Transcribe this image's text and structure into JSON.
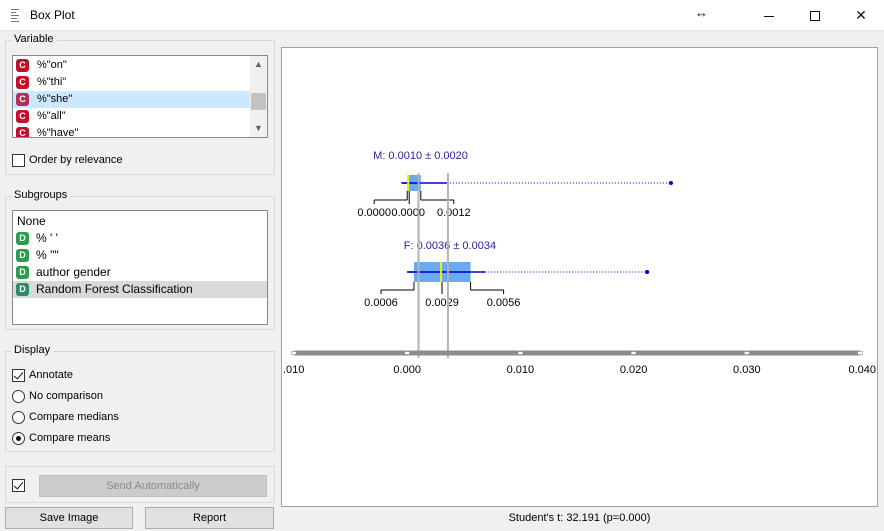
{
  "window": {
    "title": "Box Plot"
  },
  "variable": {
    "title": "Variable",
    "items": [
      {
        "type": "C",
        "label": "%\"on\""
      },
      {
        "type": "C",
        "label": "%\"thi\""
      },
      {
        "type": "C",
        "label": "%\"she\"",
        "selected": true
      },
      {
        "type": "C",
        "label": "%\"all\""
      },
      {
        "type": "C",
        "label": "%\"have\""
      }
    ],
    "order_by_relevance": {
      "label": "Order by relevance",
      "checked": false
    }
  },
  "subgroups": {
    "title": "Subgroups",
    "items": [
      {
        "type": "",
        "label": "None"
      },
      {
        "type": "D",
        "label": "% ' '"
      },
      {
        "type": "D",
        "label": "% '\"'"
      },
      {
        "type": "D",
        "label": "author gender"
      },
      {
        "type": "D",
        "label": "Random Forest Classification",
        "selected": true
      }
    ]
  },
  "display": {
    "title": "Display",
    "annotate": {
      "label": "Annotate",
      "checked": true
    },
    "options": [
      {
        "label": "No comparison",
        "checked": false
      },
      {
        "label": "Compare medians",
        "checked": false
      },
      {
        "label": "Compare means",
        "checked": true
      }
    ]
  },
  "send": {
    "checked": true,
    "label": "Send Automatically"
  },
  "buttons": {
    "save_image": "Save Image",
    "report": "Report"
  },
  "status": "Student's t: 32.191 (p=0.000)",
  "chart_data": {
    "type": "boxplot",
    "orientation": "horizontal",
    "xlim": [
      -0.01,
      0.04
    ],
    "axis_ticks": [
      {
        "value": -0.01,
        "label": ".010"
      },
      {
        "value": 0.0,
        "label": "0.000"
      },
      {
        "value": 0.01,
        "label": "0.010"
      },
      {
        "value": 0.02,
        "label": "0.020"
      },
      {
        "value": 0.03,
        "label": "0.030"
      },
      {
        "value": 0.04,
        "label": "0.040"
      }
    ],
    "colors": {
      "box": "#6aaaf5",
      "whisker": "#0000c8",
      "median": "#f0f000",
      "mean": "#0000c8",
      "guide": "#b4b4b4",
      "annotation": "#3020a0"
    },
    "groups": [
      {
        "name": "M",
        "annotation": "M: 0.0010 ± 0.0020",
        "mean": 0.001,
        "median": 0.0,
        "q1": 0.0,
        "q3": 0.0012,
        "whisker_low": -0.0005,
        "whisker_high": 0.0035,
        "max": 0.0233,
        "quartile_labels": [
          "0.0000",
          "0.0000",
          "0.0012"
        ]
      },
      {
        "name": "F",
        "annotation": "F: 0.0036 ± 0.0034",
        "mean": 0.0036,
        "median": 0.0029,
        "q1": 0.0006,
        "q3": 0.0056,
        "whisker_low": 0.0,
        "whisker_high": 0.0069,
        "max": 0.0212,
        "quartile_labels": [
          "0.0006",
          "0.0029",
          "0.0056"
        ]
      }
    ]
  }
}
